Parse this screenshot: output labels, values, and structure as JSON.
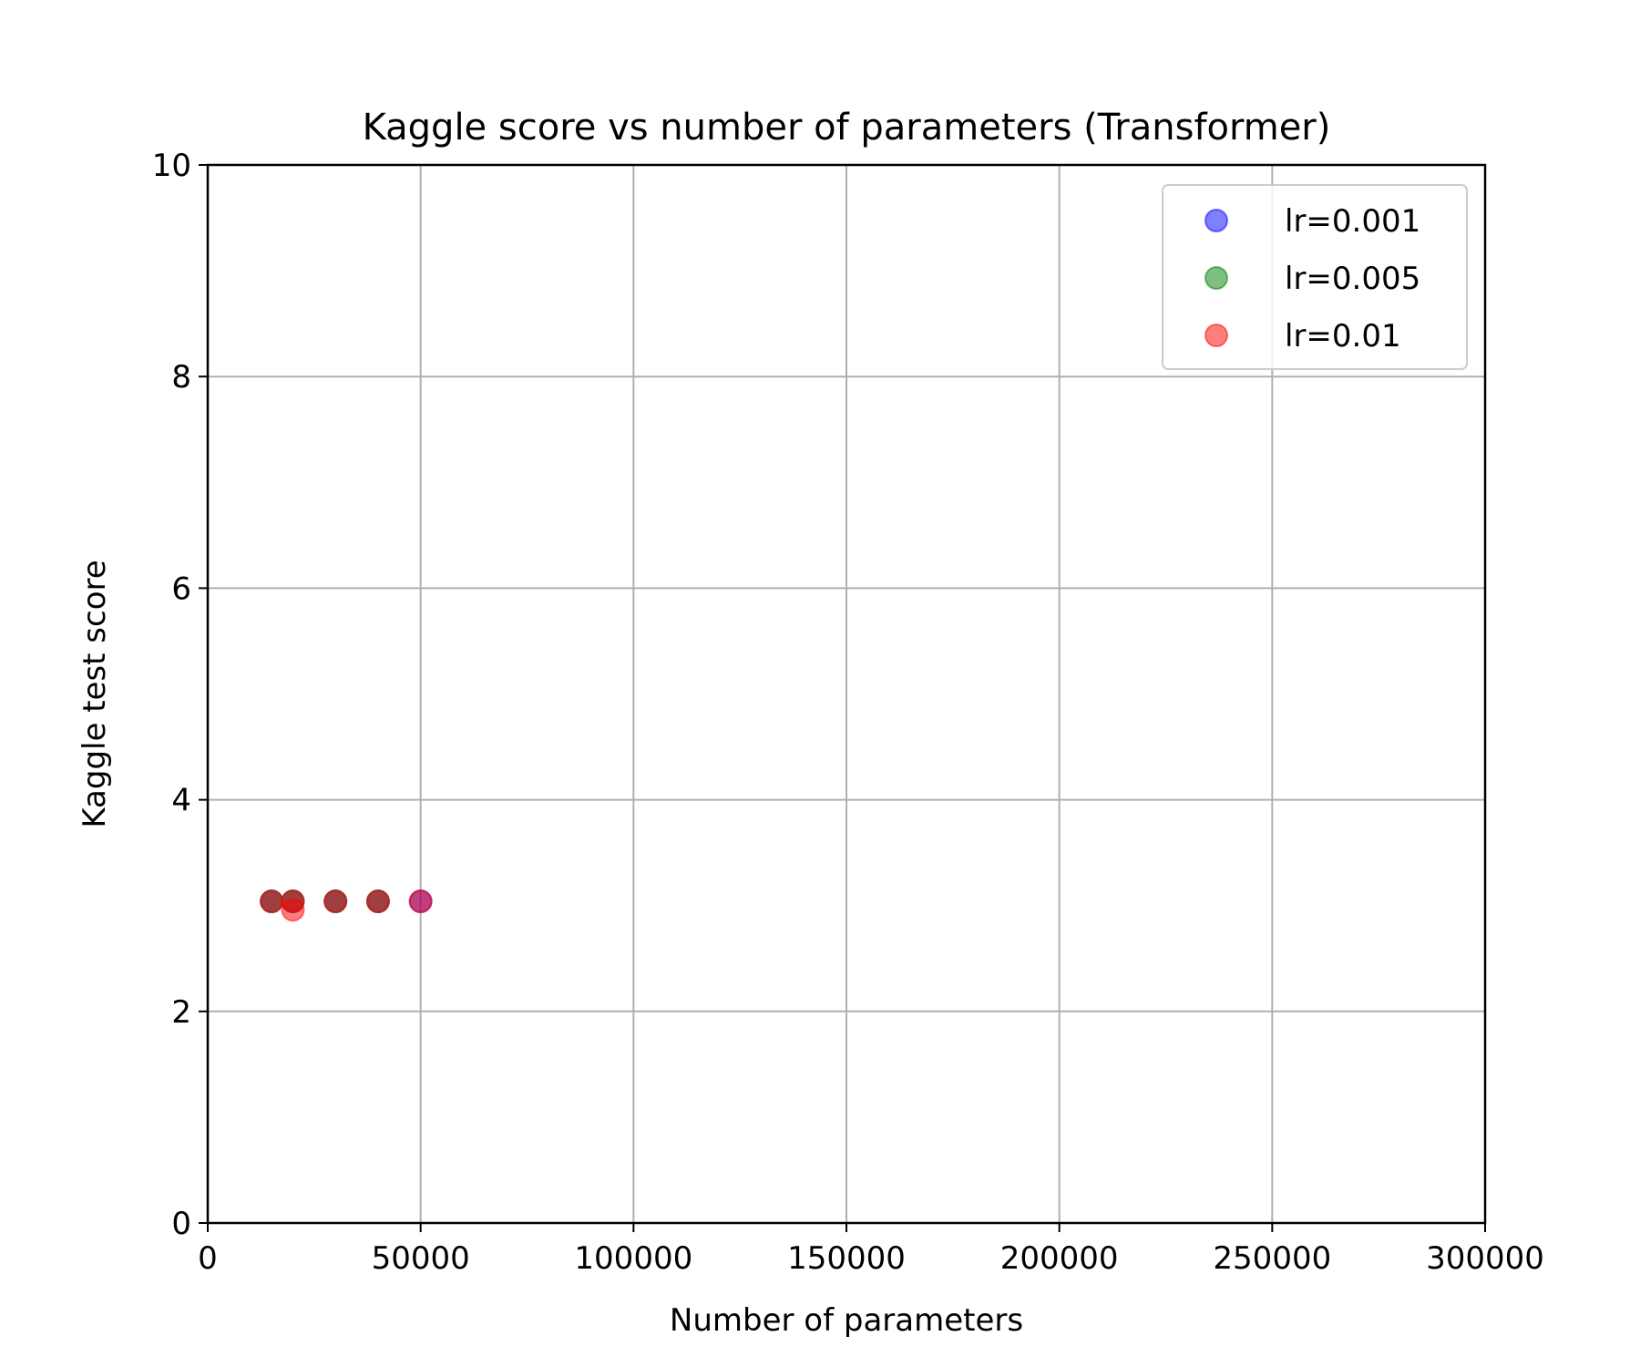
{
  "chart_data": {
    "type": "scatter",
    "title": "Kaggle score vs number of parameters (Transformer)",
    "xlabel": "Number of parameters",
    "ylabel": "Kaggle test score",
    "xlim": [
      0,
      300000
    ],
    "ylim": [
      0,
      10
    ],
    "xticks": [
      0,
      50000,
      100000,
      150000,
      200000,
      250000,
      300000
    ],
    "xtick_labels": [
      "0",
      "50000",
      "100000",
      "150000",
      "200000",
      "250000",
      "300000"
    ],
    "yticks": [
      0,
      2,
      4,
      6,
      8,
      10
    ],
    "ytick_labels": [
      "0",
      "2",
      "4",
      "6",
      "8",
      "10"
    ],
    "grid": true,
    "legend_position": "top-right",
    "series": [
      {
        "name": "lr=0.001",
        "color": "#0000ff",
        "points": [
          [
            15000,
            3.04
          ],
          [
            20000,
            3.04
          ],
          [
            30000,
            3.04
          ],
          [
            40000,
            3.04
          ],
          [
            50000,
            3.04
          ]
        ]
      },
      {
        "name": "lr=0.005",
        "color": "#008000",
        "points": [
          [
            15000,
            3.04
          ],
          [
            20000,
            3.04
          ],
          [
            30000,
            3.04
          ],
          [
            40000,
            3.04
          ]
        ]
      },
      {
        "name": "lr=0.01",
        "color": "#ff0000",
        "points": [
          [
            15000,
            3.04
          ],
          [
            20000,
            2.96
          ],
          [
            20000,
            3.04
          ],
          [
            30000,
            3.04
          ],
          [
            40000,
            3.04
          ],
          [
            50000,
            3.04
          ]
        ]
      }
    ]
  }
}
